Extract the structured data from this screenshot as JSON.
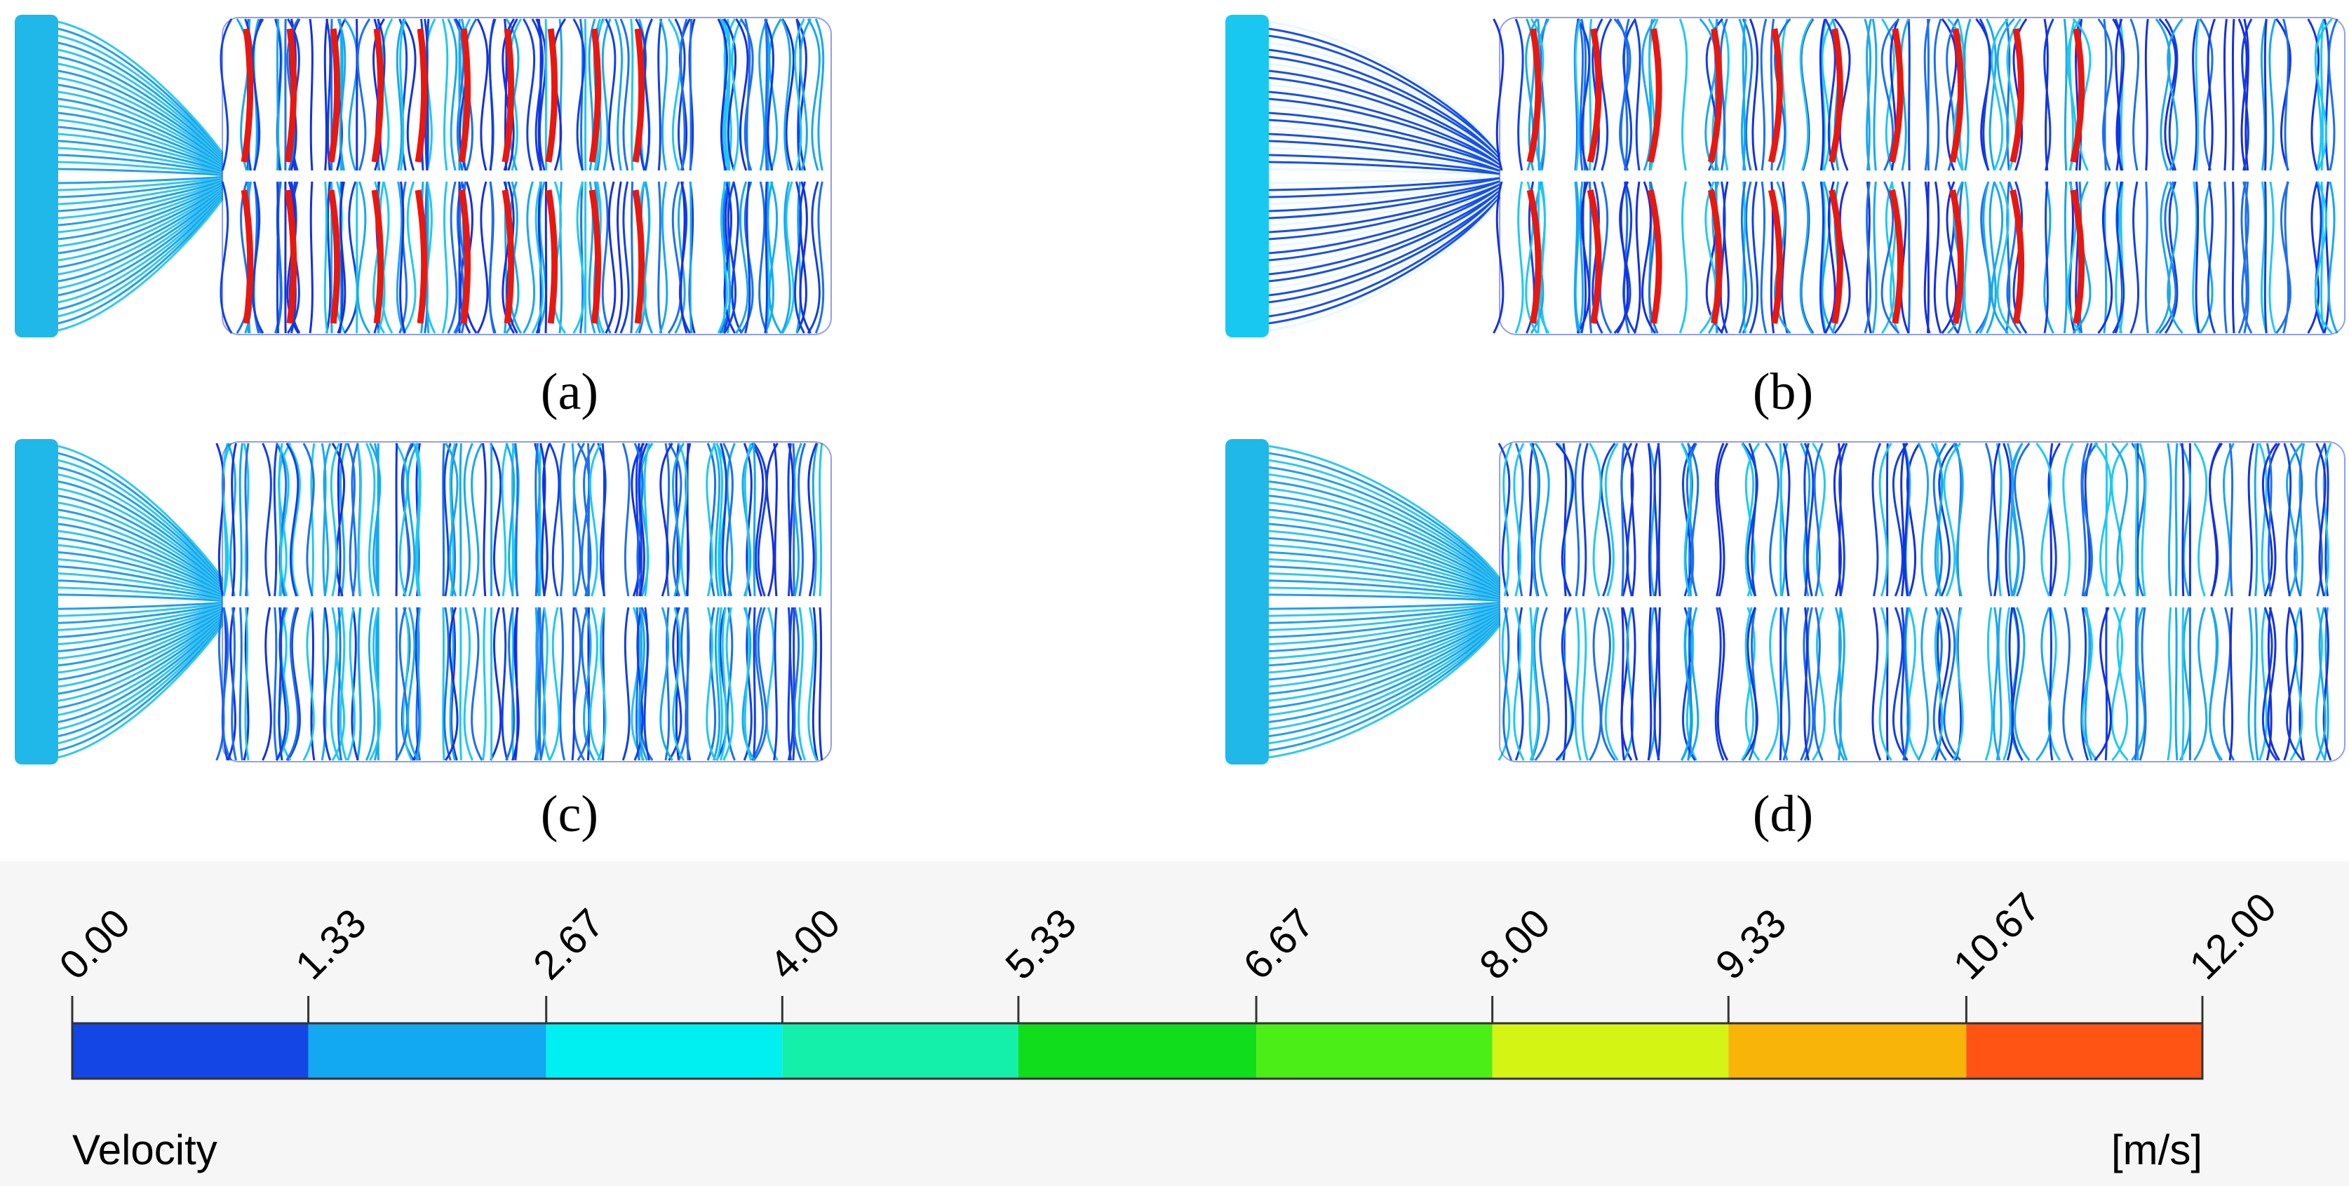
{
  "panels": [
    {
      "label": "(a)"
    },
    {
      "label": "(b)"
    },
    {
      "label": "(c)"
    },
    {
      "label": "(d)"
    }
  ],
  "colorbar": {
    "title": "Velocity",
    "unit": "[m/s]",
    "ticks": [
      {
        "value": 0,
        "label": "0.00"
      },
      1.33,
      2.67,
      {
        "value": 4,
        "label": "4.00"
      },
      5.33,
      6.67,
      {
        "value": 8,
        "label": "8.00"
      },
      9.33,
      10.67,
      {
        "value": 12,
        "label": "12.00"
      }
    ],
    "colors": [
      "#1446e6",
      "#12a8f2",
      "#00f0f2",
      "#14f0aa",
      "#10de1c",
      "#4cee18",
      "#d4f414",
      "#f8b408",
      "#ff5414"
    ]
  }
}
